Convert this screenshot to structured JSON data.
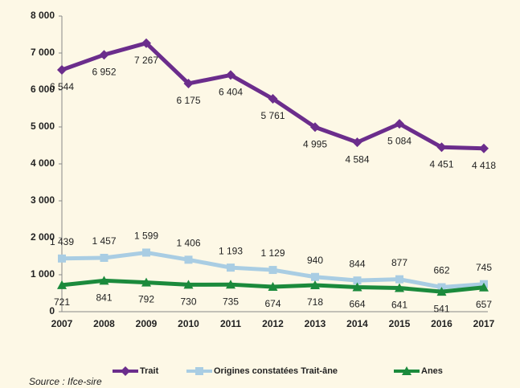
{
  "chart_data": {
    "type": "line",
    "categories": [
      "2007",
      "2008",
      "2009",
      "2010",
      "2011",
      "2012",
      "2013",
      "2014",
      "2015",
      "2016",
      "2017"
    ],
    "ylim": [
      0,
      8000
    ],
    "yticks": [
      0,
      {
        "value": 1000,
        "label": "1 000"
      },
      {
        "value": 2000,
        "label": "2 000"
      },
      {
        "value": 3000,
        "label": "3 000"
      },
      {
        "value": 4000,
        "label": "4 000"
      },
      {
        "value": 5000,
        "label": "5 000"
      },
      {
        "value": 6000,
        "label": "6 000"
      },
      {
        "value": 7000,
        "label": "7 000"
      },
      {
        "value": 8000,
        "label": "8 000"
      }
    ],
    "grid": false,
    "legend": "bottom",
    "series": [
      {
        "name": "Trait",
        "color": "#6b2d8c",
        "marker": "diamond",
        "label_position": "below",
        "values": [
          6544,
          6952,
          7267,
          6175,
          6404,
          5761,
          4995,
          4584,
          5084,
          4451,
          4418
        ],
        "value_labels": [
          "6 544",
          "6 952",
          "7 267",
          "6 175",
          "6 404",
          "5 761",
          "4 995",
          "4 584",
          "5 084",
          "4 451",
          "4 418"
        ]
      },
      {
        "name": "Origines constatées Trait-âne",
        "color": "#a9cde3",
        "marker": "square",
        "label_position": "above",
        "values": [
          1439,
          1457,
          1599,
          1406,
          1193,
          1129,
          940,
          844,
          877,
          662,
          745
        ],
        "value_labels": [
          "1 439",
          "1 457",
          "1 599",
          "1 406",
          "1 193",
          "1 129",
          "940",
          "844",
          "877",
          "662",
          "745"
        ]
      },
      {
        "name": "Anes",
        "color": "#1b8a3c",
        "marker": "triangle",
        "label_position": "below",
        "values": [
          721,
          841,
          792,
          730,
          735,
          674,
          718,
          664,
          641,
          541,
          657
        ],
        "value_labels": [
          "721",
          "841",
          "792",
          "730",
          "735",
          "674",
          "718",
          "664",
          "641",
          "541",
          "657"
        ]
      }
    ],
    "source": "Source :  Ifce-sire"
  }
}
